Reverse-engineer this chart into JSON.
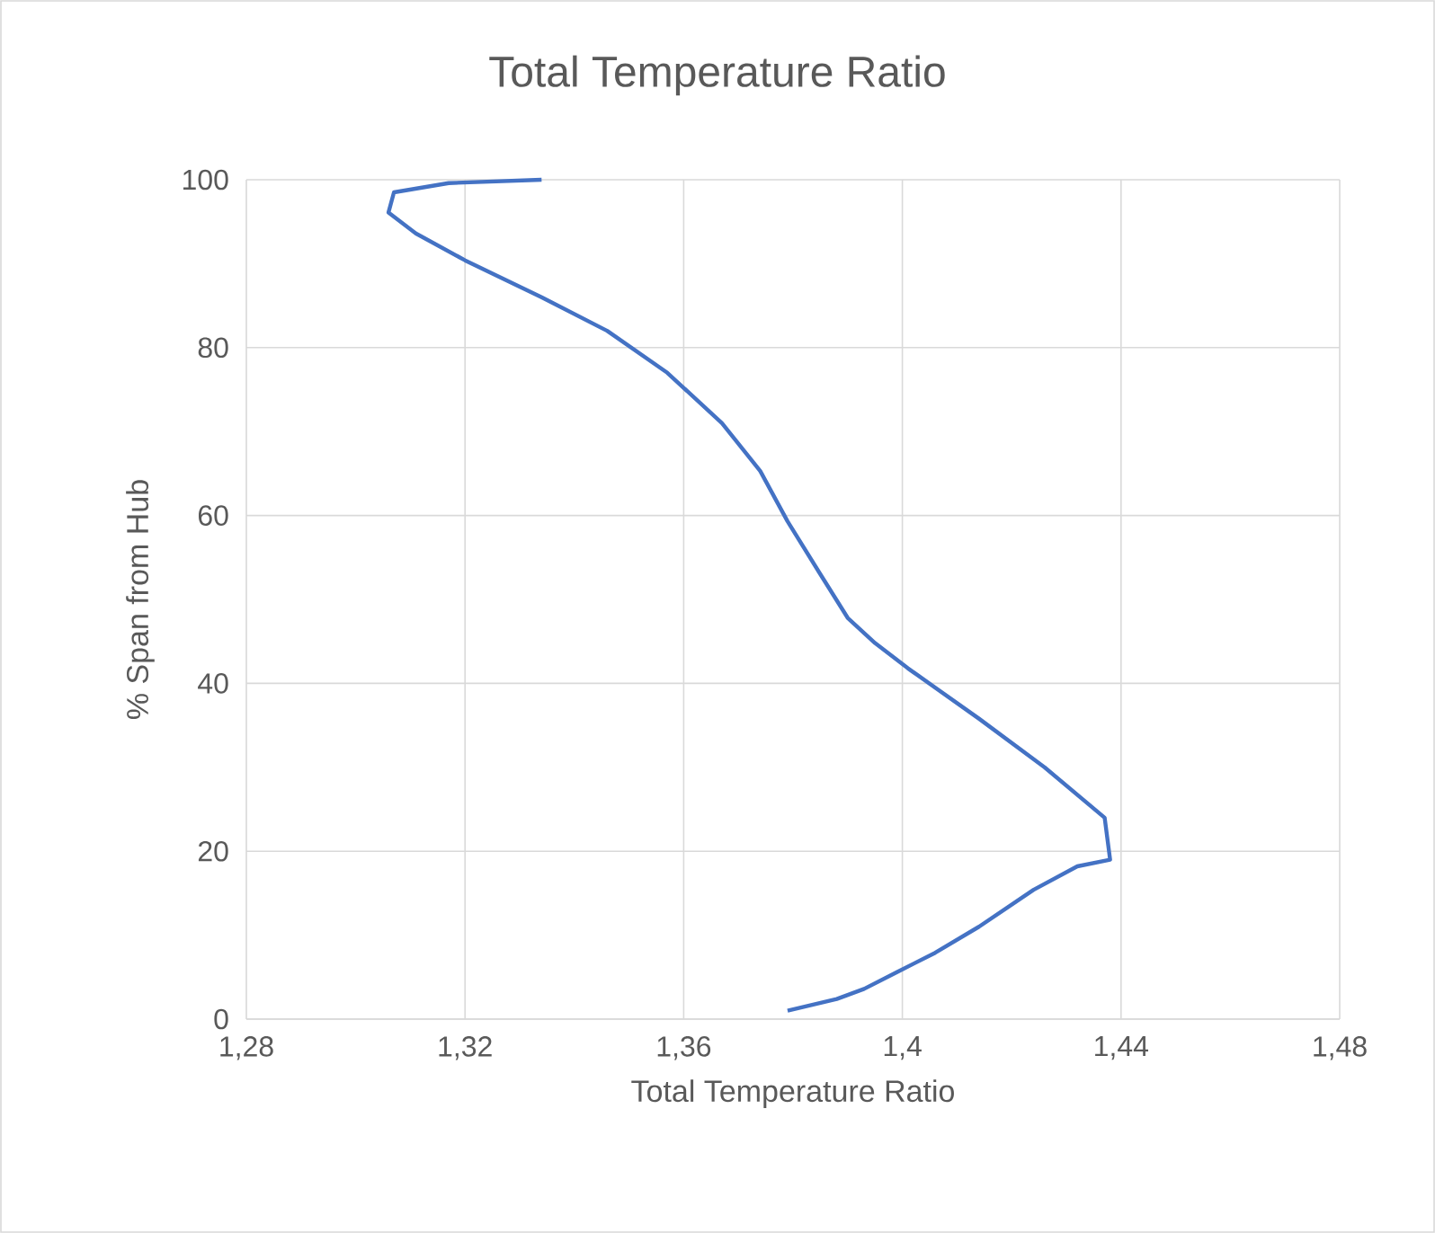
{
  "chart_data": {
    "type": "line",
    "title": "Total Temperature Ratio",
    "xlabel": "Total Temperature Ratio",
    "ylabel": "% Span from Hub",
    "series": [
      {
        "color": "#4472c4",
        "x": [
          1.379,
          1.388,
          1.393,
          1.399,
          1.406,
          1.414,
          1.424,
          1.432,
          1.438,
          1.437,
          1.426,
          1.414,
          1.401,
          1.395,
          1.39,
          1.385,
          1.379,
          1.374,
          1.367,
          1.357,
          1.346,
          1.334,
          1.32,
          1.311,
          1.306,
          1.307,
          1.317,
          1.334
        ],
        "values": [
          1,
          2.4,
          3.6,
          5.6,
          7.9,
          11,
          15.4,
          18.2,
          19,
          24,
          30,
          35.8,
          41.8,
          44.8,
          47.8,
          53,
          59.3,
          65.3,
          71,
          77,
          82,
          86,
          90.4,
          93.6,
          96.1,
          98.5,
          99.6,
          100
        ]
      }
    ],
    "xlim": [
      1.28,
      1.48
    ],
    "ylim": [
      0,
      100
    ],
    "xticks": [
      {
        "value": 1.28,
        "label": "1,28"
      },
      {
        "value": 1.32,
        "label": "1,32"
      },
      {
        "value": 1.36,
        "label": "1,36"
      },
      {
        "value": 1.4,
        "label": "1,4"
      },
      {
        "value": 1.44,
        "label": "1,44"
      },
      {
        "value": 1.48,
        "label": "1,48"
      }
    ],
    "yticks": [
      0,
      20,
      40,
      60,
      80,
      100
    ],
    "grid": true,
    "legend": false,
    "marker": "none",
    "line_style": "solid"
  }
}
